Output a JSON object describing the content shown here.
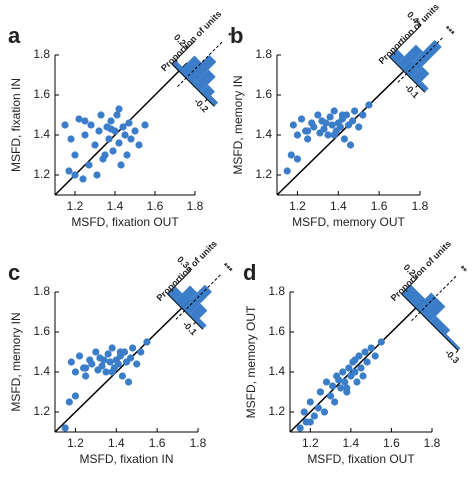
{
  "chart_data": [
    {
      "type": "scatter",
      "panel": "a",
      "xlabel": "MSFD, fixation OUT",
      "ylabel": "MSFD, fixation IN",
      "color": "#3b7dc8",
      "x": [
        1.15,
        1.17,
        1.18,
        1.2,
        1.22,
        1.24,
        1.25,
        1.27,
        1.28,
        1.3,
        1.31,
        1.32,
        1.33,
        1.35,
        1.36,
        1.37,
        1.38,
        1.39,
        1.4,
        1.41,
        1.42,
        1.43,
        1.44,
        1.45,
        1.46,
        1.47,
        1.48,
        1.5,
        1.52,
        1.55,
        1.2,
        1.25,
        1.34,
        1.38,
        1.42
      ],
      "values": [
        1.45,
        1.22,
        1.38,
        1.3,
        1.48,
        1.18,
        1.4,
        1.25,
        1.45,
        1.35,
        1.2,
        1.42,
        1.5,
        1.3,
        1.44,
        1.38,
        1.47,
        1.32,
        1.42,
        1.5,
        1.36,
        1.25,
        1.44,
        1.4,
        1.3,
        1.46,
        1.38,
        1.42,
        1.35,
        1.45,
        1.2,
        1.47,
        1.28,
        1.43,
        1.53
      ],
      "xlim": [
        1.1,
        1.8
      ],
      "ylim": [
        1.1,
        1.8
      ],
      "xticks": [
        1.2,
        1.4,
        1.6,
        1.8
      ],
      "yticks": [
        1.2,
        1.4,
        1.6,
        1.8
      ],
      "inset": {
        "label": "Proportion of units",
        "bins": [
          -0.25,
          -0.2,
          -0.15,
          -0.1,
          -0.05,
          0,
          0.05
        ],
        "values": [
          0.05,
          0.1,
          0.2,
          0.3,
          0.2,
          0.05
        ],
        "xticks": [
          -0.2
        ],
        "yticks": [
          0.2
        ],
        "mean": -0.05,
        "significance": "*"
      }
    },
    {
      "type": "scatter",
      "panel": "b",
      "xlabel": "MSFD, memory OUT",
      "ylabel": "MSFD, memory IN",
      "color": "#3b7dc8",
      "x": [
        1.15,
        1.17,
        1.18,
        1.2,
        1.22,
        1.24,
        1.25,
        1.27,
        1.28,
        1.3,
        1.31,
        1.32,
        1.33,
        1.35,
        1.36,
        1.37,
        1.38,
        1.39,
        1.4,
        1.41,
        1.42,
        1.43,
        1.44,
        1.45,
        1.46,
        1.47,
        1.48,
        1.5,
        1.52,
        1.55,
        1.2,
        1.25,
        1.34,
        1.38,
        1.42
      ],
      "values": [
        1.22,
        1.3,
        1.45,
        1.4,
        1.48,
        1.42,
        1.38,
        1.46,
        1.44,
        1.5,
        1.41,
        1.47,
        1.43,
        1.4,
        1.49,
        1.45,
        1.52,
        1.42,
        1.46,
        1.44,
        1.48,
        1.38,
        1.5,
        1.45,
        1.35,
        1.47,
        1.52,
        1.44,
        1.5,
        1.55,
        1.28,
        1.42,
        1.46,
        1.4,
        1.5
      ],
      "xlim": [
        1.1,
        1.8
      ],
      "ylim": [
        1.1,
        1.8
      ],
      "xticks": [
        1.2,
        1.4,
        1.6,
        1.8
      ],
      "yticks": [
        1.2,
        1.4,
        1.6,
        1.8
      ],
      "inset": {
        "label": "Proportion of units",
        "bins": [
          -0.15,
          -0.1,
          -0.05,
          0,
          0.05,
          0.1
        ],
        "values": [
          0.05,
          0.15,
          0.4,
          0.25,
          0.1
        ],
        "xticks": [
          -0.1
        ],
        "yticks": [
          0.4
        ],
        "mean": -0.02,
        "significance": "***"
      }
    },
    {
      "type": "scatter",
      "panel": "c",
      "xlabel": "MSFD, fixation IN",
      "ylabel": "MSFD, memory IN",
      "color": "#3b7dc8",
      "x": [
        1.15,
        1.17,
        1.18,
        1.2,
        1.22,
        1.24,
        1.25,
        1.27,
        1.28,
        1.3,
        1.31,
        1.32,
        1.33,
        1.35,
        1.36,
        1.37,
        1.38,
        1.39,
        1.4,
        1.41,
        1.42,
        1.43,
        1.44,
        1.45,
        1.46,
        1.47,
        1.48,
        1.5,
        1.52,
        1.55,
        1.2,
        1.25,
        1.34,
        1.38,
        1.42
      ],
      "values": [
        1.12,
        1.25,
        1.45,
        1.4,
        1.48,
        1.42,
        1.38,
        1.46,
        1.44,
        1.5,
        1.41,
        1.47,
        1.43,
        1.4,
        1.49,
        1.45,
        1.52,
        1.42,
        1.46,
        1.44,
        1.48,
        1.38,
        1.5,
        1.45,
        1.35,
        1.47,
        1.52,
        1.44,
        1.5,
        1.55,
        1.28,
        1.42,
        1.46,
        1.4,
        1.5
      ],
      "xlim": [
        1.1,
        1.8
      ],
      "ylim": [
        1.1,
        1.8
      ],
      "xticks": [
        1.2,
        1.4,
        1.6,
        1.8
      ],
      "yticks": [
        1.2,
        1.4,
        1.6,
        1.8
      ],
      "inset": {
        "label": "Proportion of units",
        "bins": [
          -0.15,
          -0.1,
          -0.05,
          0,
          0.05,
          0.1
        ],
        "values": [
          0.05,
          0.15,
          0.3,
          0.2,
          0.1
        ],
        "xticks": [
          -0.1
        ],
        "yticks": [
          0.3
        ],
        "mean": -0.02,
        "significance": "***"
      }
    },
    {
      "type": "scatter",
      "panel": "d",
      "xlabel": "MSFD, fixation OUT",
      "ylabel": "MSFD, memory OUT",
      "color": "#3b7dc8",
      "x": [
        1.15,
        1.17,
        1.18,
        1.2,
        1.22,
        1.24,
        1.25,
        1.27,
        1.28,
        1.3,
        1.31,
        1.32,
        1.33,
        1.35,
        1.36,
        1.37,
        1.38,
        1.39,
        1.4,
        1.41,
        1.42,
        1.43,
        1.44,
        1.45,
        1.46,
        1.47,
        1.48,
        1.5,
        1.52,
        1.55,
        1.2,
        1.25,
        1.34,
        1.38,
        1.42
      ],
      "values": [
        1.12,
        1.2,
        1.15,
        1.25,
        1.18,
        1.22,
        1.3,
        1.2,
        1.35,
        1.28,
        1.33,
        1.25,
        1.38,
        1.32,
        1.4,
        1.35,
        1.3,
        1.42,
        1.38,
        1.45,
        1.4,
        1.35,
        1.48,
        1.42,
        1.38,
        1.5,
        1.45,
        1.52,
        1.48,
        1.55,
        1.15,
        1.3,
        1.36,
        1.32,
        1.46
      ],
      "xlim": [
        1.1,
        1.8
      ],
      "ylim": [
        1.1,
        1.8
      ],
      "xticks": [
        1.2,
        1.4,
        1.6,
        1.8
      ],
      "yticks": [
        1.2,
        1.4,
        1.6,
        1.8
      ],
      "inset": {
        "label": "Proportion of units",
        "bins": [
          -0.3,
          -0.2,
          -0.1,
          0,
          0.1
        ],
        "values": [
          0.03,
          0.08,
          0.2,
          0.12
        ],
        "xticks": [
          -0.3
        ],
        "yticks": [
          0.2
        ],
        "mean": -0.03,
        "significance": "**"
      }
    }
  ]
}
